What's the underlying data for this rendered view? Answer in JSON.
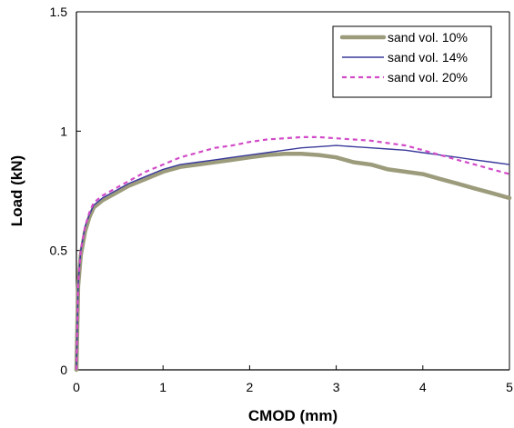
{
  "chart_data": {
    "type": "line",
    "title": "",
    "xlabel": "CMOD (mm)",
    "ylabel": "Load (kN)",
    "xlim": [
      0,
      5
    ],
    "ylim": [
      0,
      1.5
    ],
    "x_ticks": [
      "0",
      "1",
      "2",
      "3",
      "4",
      "5"
    ],
    "y_ticks": [
      "0",
      "0.5",
      "1",
      "1.5"
    ],
    "x_tick_values": [
      0,
      1,
      2,
      3,
      4,
      5
    ],
    "y_tick_values": [
      0,
      0.5,
      1,
      1.5
    ],
    "grid": false,
    "legend_position": "top-right",
    "series": [
      {
        "name": "sand vol. 10%",
        "color": "#9c9c7c",
        "style": "solid-thick",
        "x": [
          0,
          0.02,
          0.05,
          0.1,
          0.15,
          0.2,
          0.3,
          0.4,
          0.5,
          0.6,
          0.8,
          1.0,
          1.2,
          1.4,
          1.6,
          1.8,
          2.0,
          2.2,
          2.4,
          2.6,
          2.8,
          3.0,
          3.2,
          3.4,
          3.6,
          3.8,
          4.0,
          4.2,
          4.4,
          4.6,
          4.8,
          5.0
        ],
        "y": [
          0,
          0.35,
          0.48,
          0.58,
          0.64,
          0.68,
          0.71,
          0.73,
          0.75,
          0.77,
          0.8,
          0.83,
          0.85,
          0.86,
          0.87,
          0.88,
          0.89,
          0.9,
          0.905,
          0.905,
          0.9,
          0.89,
          0.87,
          0.86,
          0.84,
          0.83,
          0.82,
          0.8,
          0.78,
          0.76,
          0.74,
          0.72
        ]
      },
      {
        "name": "sand vol. 14%",
        "color": "#3a3a9c",
        "style": "solid-thin",
        "x": [
          0,
          0.02,
          0.05,
          0.1,
          0.15,
          0.2,
          0.3,
          0.4,
          0.5,
          0.6,
          0.8,
          1.0,
          1.2,
          1.4,
          1.6,
          1.8,
          2.0,
          2.2,
          2.4,
          2.6,
          2.8,
          3.0,
          3.2,
          3.4,
          3.6,
          3.8,
          4.0,
          4.2,
          4.4,
          4.6,
          4.8,
          5.0
        ],
        "y": [
          0,
          0.36,
          0.5,
          0.6,
          0.65,
          0.69,
          0.72,
          0.74,
          0.76,
          0.78,
          0.81,
          0.84,
          0.86,
          0.87,
          0.88,
          0.89,
          0.9,
          0.91,
          0.92,
          0.93,
          0.935,
          0.94,
          0.935,
          0.93,
          0.925,
          0.92,
          0.91,
          0.9,
          0.89,
          0.88,
          0.87,
          0.86
        ]
      },
      {
        "name": "sand vol. 20%",
        "color": "#d24bc8",
        "style": "dashed",
        "x": [
          0,
          0.02,
          0.05,
          0.1,
          0.15,
          0.2,
          0.3,
          0.4,
          0.5,
          0.6,
          0.8,
          1.0,
          1.2,
          1.4,
          1.6,
          1.8,
          2.0,
          2.2,
          2.4,
          2.6,
          2.8,
          3.0,
          3.2,
          3.4,
          3.6,
          3.8,
          4.0,
          4.2,
          4.4,
          4.6,
          4.8,
          5.0
        ],
        "y": [
          0,
          0.36,
          0.5,
          0.6,
          0.66,
          0.7,
          0.73,
          0.75,
          0.77,
          0.79,
          0.83,
          0.86,
          0.89,
          0.91,
          0.93,
          0.94,
          0.955,
          0.965,
          0.97,
          0.975,
          0.975,
          0.97,
          0.965,
          0.96,
          0.95,
          0.94,
          0.92,
          0.9,
          0.88,
          0.86,
          0.84,
          0.82
        ]
      }
    ]
  }
}
